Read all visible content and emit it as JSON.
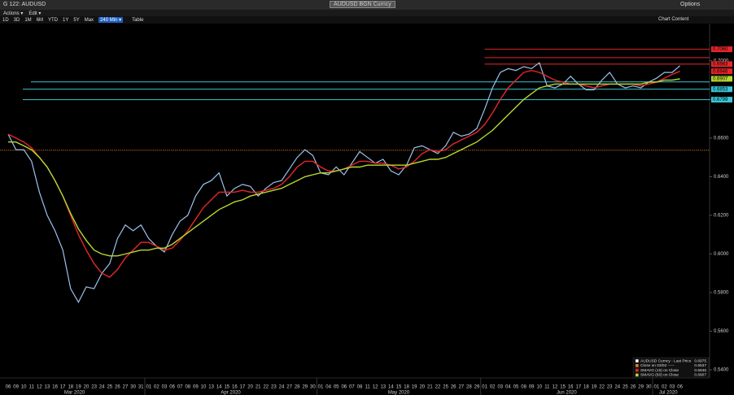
{
  "header": {
    "title": "G 122: AUDUSD",
    "security": "AUDUSD BGN Curncy",
    "options": "Options"
  },
  "menu": [
    "Actions ▾",
    "Edit ▾"
  ],
  "toolbar": {
    "ranges": [
      "1D",
      "3D",
      "1M",
      "6M",
      "YTD",
      "1Y",
      "5Y",
      "Max"
    ],
    "active": "240 Min ▾",
    "table": "Table",
    "chart_content": "Chart Content"
  },
  "chart_data": {
    "type": "line",
    "categories": [
      "06",
      "09",
      "10",
      "11",
      "12",
      "13",
      "16",
      "17",
      "18",
      "19",
      "20",
      "23",
      "24",
      "25",
      "26",
      "27",
      "30",
      "31",
      "01",
      "02",
      "03",
      "06",
      "07",
      "08",
      "09",
      "10",
      "13",
      "14",
      "15",
      "16",
      "17",
      "20",
      "21",
      "22",
      "23",
      "24",
      "27",
      "28",
      "29",
      "30",
      "01",
      "04",
      "05",
      "06",
      "07",
      "08",
      "11",
      "12",
      "13",
      "14",
      "15",
      "18",
      "19",
      "20",
      "21",
      "22",
      "25",
      "26",
      "27",
      "28",
      "29",
      "01",
      "02",
      "03",
      "04",
      "05",
      "08",
      "09",
      "10",
      "11",
      "12",
      "15",
      "16",
      "17",
      "18",
      "19",
      "22",
      "23",
      "24",
      "25",
      "26",
      "29",
      "30",
      "01",
      "02",
      "03",
      "06"
    ],
    "month_labels": [
      "Mar 2020",
      "Apr 2020",
      "May 2020",
      "Jun 2020",
      "Jul 2020"
    ],
    "series": [
      {
        "name": "AUDUSD Curncy - Last Price",
        "color": "#9cc2ee",
        "width": 1.2,
        "values": [
          0.662,
          0.654,
          0.654,
          0.648,
          0.632,
          0.62,
          0.612,
          0.602,
          0.582,
          0.575,
          0.583,
          0.582,
          0.59,
          0.595,
          0.608,
          0.615,
          0.612,
          0.615,
          0.608,
          0.604,
          0.601,
          0.61,
          0.617,
          0.62,
          0.63,
          0.636,
          0.638,
          0.642,
          0.63,
          0.634,
          0.636,
          0.635,
          0.63,
          0.634,
          0.637,
          0.638,
          0.644,
          0.65,
          0.654,
          0.651,
          0.642,
          0.641,
          0.645,
          0.641,
          0.647,
          0.653,
          0.65,
          0.647,
          0.649,
          0.643,
          0.641,
          0.646,
          0.655,
          0.656,
          0.654,
          0.652,
          0.656,
          0.663,
          0.661,
          0.662,
          0.665,
          0.675,
          0.686,
          0.694,
          0.696,
          0.695,
          0.697,
          0.696,
          0.699,
          0.687,
          0.686,
          0.688,
          0.692,
          0.688,
          0.685,
          0.685,
          0.69,
          0.694,
          0.688,
          0.686,
          0.687,
          0.686,
          0.689,
          0.691,
          0.694,
          0.694,
          0.6975
        ]
      },
      {
        "name": "SMAVG (15) on Close",
        "color": "#e8262b",
        "width": 1.4,
        "values": [
          0.662,
          0.66,
          0.658,
          0.655,
          0.65,
          0.645,
          0.638,
          0.63,
          0.62,
          0.61,
          0.602,
          0.595,
          0.59,
          0.588,
          0.592,
          0.598,
          0.602,
          0.606,
          0.606,
          0.604,
          0.602,
          0.603,
          0.607,
          0.612,
          0.618,
          0.624,
          0.628,
          0.632,
          0.632,
          0.632,
          0.633,
          0.632,
          0.632,
          0.633,
          0.634,
          0.636,
          0.64,
          0.645,
          0.648,
          0.648,
          0.645,
          0.643,
          0.643,
          0.644,
          0.646,
          0.648,
          0.648,
          0.647,
          0.647,
          0.646,
          0.644,
          0.645,
          0.648,
          0.652,
          0.654,
          0.653,
          0.654,
          0.657,
          0.659,
          0.661,
          0.663,
          0.667,
          0.673,
          0.68,
          0.686,
          0.69,
          0.694,
          0.695,
          0.694,
          0.692,
          0.69,
          0.689,
          0.688,
          0.688,
          0.687,
          0.686,
          0.687,
          0.688,
          0.688,
          0.688,
          0.688,
          0.687,
          0.688,
          0.689,
          0.691,
          0.693,
          0.6946
        ]
      },
      {
        "name": "SMAVG (60) on Close",
        "color": "#b6d82f",
        "width": 1.4,
        "values": [
          0.658,
          0.658,
          0.656,
          0.654,
          0.65,
          0.645,
          0.638,
          0.63,
          0.621,
          0.613,
          0.607,
          0.602,
          0.6,
          0.599,
          0.599,
          0.6,
          0.601,
          0.602,
          0.602,
          0.603,
          0.603,
          0.605,
          0.608,
          0.611,
          0.614,
          0.617,
          0.62,
          0.623,
          0.625,
          0.627,
          0.628,
          0.63,
          0.631,
          0.632,
          0.633,
          0.634,
          0.636,
          0.638,
          0.64,
          0.641,
          0.642,
          0.642,
          0.643,
          0.644,
          0.645,
          0.645,
          0.646,
          0.646,
          0.646,
          0.646,
          0.646,
          0.646,
          0.647,
          0.648,
          0.649,
          0.649,
          0.65,
          0.652,
          0.654,
          0.656,
          0.658,
          0.661,
          0.664,
          0.668,
          0.672,
          0.676,
          0.68,
          0.683,
          0.686,
          0.687,
          0.688,
          0.688,
          0.688,
          0.688,
          0.688,
          0.688,
          0.688,
          0.688,
          0.688,
          0.688,
          0.688,
          0.688,
          0.689,
          0.689,
          0.69,
          0.69,
          0.6907
        ]
      }
    ],
    "value_labels": [
      "0.6975",
      "0.6946",
      "0.6907"
    ],
    "reference_line": {
      "name": "Close on 03/02 -----",
      "value": 0.6537,
      "label": "0.6537",
      "color": "#e0801c"
    },
    "hlines": [
      {
        "value": 0.706,
        "label": "0.7060",
        "color": "#e8262b"
      },
      {
        "value": 0.7017,
        "color": "#e8262b"
      },
      {
        "value": 0.6983,
        "label": "0.6983",
        "color": "#e8262b"
      },
      {
        "value": 0.6891,
        "color": "#39c6d6"
      },
      {
        "value": 0.6853,
        "label": "0.6853",
        "color": "#39c6d6"
      },
      {
        "value": 0.6799,
        "label": "0.6799",
        "color": "#39c6d6"
      }
    ],
    "ylim": [
      0.5358,
      0.7193
    ],
    "yticks": [
      {
        "value": 0.54,
        "label": "0.5400"
      },
      {
        "value": 0.56,
        "label": "0.5600"
      },
      {
        "value": 0.58,
        "label": "0.5800"
      },
      {
        "value": 0.6,
        "label": "0.6000"
      },
      {
        "value": 0.62,
        "label": "0.6200"
      },
      {
        "value": 0.64,
        "label": "0.6400"
      },
      {
        "value": 0.66,
        "label": "0.6600"
      },
      {
        "value": 0.68,
        "label": "0.6800"
      },
      {
        "value": 0.7,
        "label": "0.7000"
      }
    ],
    "grid": false
  }
}
